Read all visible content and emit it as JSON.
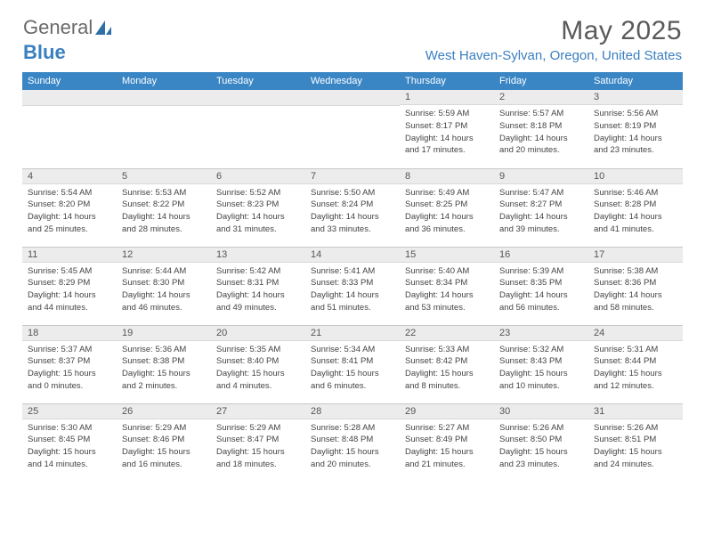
{
  "brand": {
    "part1": "General",
    "part2": "Blue"
  },
  "title": "May 2025",
  "location": "West Haven-Sylvan, Oregon, United States",
  "weekdays": [
    "Sunday",
    "Monday",
    "Tuesday",
    "Wednesday",
    "Thursday",
    "Friday",
    "Saturday"
  ],
  "colors": {
    "header_bg": "#3a86c5",
    "accent": "#3a7fbf",
    "daynum_bg": "#ececec",
    "text": "#444444"
  },
  "weeks": [
    [
      {
        "empty": true
      },
      {
        "empty": true
      },
      {
        "empty": true
      },
      {
        "empty": true
      },
      {
        "n": "1",
        "sr": "5:59 AM",
        "ss": "8:17 PM",
        "dh": "14",
        "dm": "17"
      },
      {
        "n": "2",
        "sr": "5:57 AM",
        "ss": "8:18 PM",
        "dh": "14",
        "dm": "20"
      },
      {
        "n": "3",
        "sr": "5:56 AM",
        "ss": "8:19 PM",
        "dh": "14",
        "dm": "23"
      }
    ],
    [
      {
        "n": "4",
        "sr": "5:54 AM",
        "ss": "8:20 PM",
        "dh": "14",
        "dm": "25"
      },
      {
        "n": "5",
        "sr": "5:53 AM",
        "ss": "8:22 PM",
        "dh": "14",
        "dm": "28"
      },
      {
        "n": "6",
        "sr": "5:52 AM",
        "ss": "8:23 PM",
        "dh": "14",
        "dm": "31"
      },
      {
        "n": "7",
        "sr": "5:50 AM",
        "ss": "8:24 PM",
        "dh": "14",
        "dm": "33"
      },
      {
        "n": "8",
        "sr": "5:49 AM",
        "ss": "8:25 PM",
        "dh": "14",
        "dm": "36"
      },
      {
        "n": "9",
        "sr": "5:47 AM",
        "ss": "8:27 PM",
        "dh": "14",
        "dm": "39"
      },
      {
        "n": "10",
        "sr": "5:46 AM",
        "ss": "8:28 PM",
        "dh": "14",
        "dm": "41"
      }
    ],
    [
      {
        "n": "11",
        "sr": "5:45 AM",
        "ss": "8:29 PM",
        "dh": "14",
        "dm": "44"
      },
      {
        "n": "12",
        "sr": "5:44 AM",
        "ss": "8:30 PM",
        "dh": "14",
        "dm": "46"
      },
      {
        "n": "13",
        "sr": "5:42 AM",
        "ss": "8:31 PM",
        "dh": "14",
        "dm": "49"
      },
      {
        "n": "14",
        "sr": "5:41 AM",
        "ss": "8:33 PM",
        "dh": "14",
        "dm": "51"
      },
      {
        "n": "15",
        "sr": "5:40 AM",
        "ss": "8:34 PM",
        "dh": "14",
        "dm": "53"
      },
      {
        "n": "16",
        "sr": "5:39 AM",
        "ss": "8:35 PM",
        "dh": "14",
        "dm": "56"
      },
      {
        "n": "17",
        "sr": "5:38 AM",
        "ss": "8:36 PM",
        "dh": "14",
        "dm": "58"
      }
    ],
    [
      {
        "n": "18",
        "sr": "5:37 AM",
        "ss": "8:37 PM",
        "dh": "15",
        "dm": "0"
      },
      {
        "n": "19",
        "sr": "5:36 AM",
        "ss": "8:38 PM",
        "dh": "15",
        "dm": "2"
      },
      {
        "n": "20",
        "sr": "5:35 AM",
        "ss": "8:40 PM",
        "dh": "15",
        "dm": "4"
      },
      {
        "n": "21",
        "sr": "5:34 AM",
        "ss": "8:41 PM",
        "dh": "15",
        "dm": "6"
      },
      {
        "n": "22",
        "sr": "5:33 AM",
        "ss": "8:42 PM",
        "dh": "15",
        "dm": "8"
      },
      {
        "n": "23",
        "sr": "5:32 AM",
        "ss": "8:43 PM",
        "dh": "15",
        "dm": "10"
      },
      {
        "n": "24",
        "sr": "5:31 AM",
        "ss": "8:44 PM",
        "dh": "15",
        "dm": "12"
      }
    ],
    [
      {
        "n": "25",
        "sr": "5:30 AM",
        "ss": "8:45 PM",
        "dh": "15",
        "dm": "14"
      },
      {
        "n": "26",
        "sr": "5:29 AM",
        "ss": "8:46 PM",
        "dh": "15",
        "dm": "16"
      },
      {
        "n": "27",
        "sr": "5:29 AM",
        "ss": "8:47 PM",
        "dh": "15",
        "dm": "18"
      },
      {
        "n": "28",
        "sr": "5:28 AM",
        "ss": "8:48 PM",
        "dh": "15",
        "dm": "20"
      },
      {
        "n": "29",
        "sr": "5:27 AM",
        "ss": "8:49 PM",
        "dh": "15",
        "dm": "21"
      },
      {
        "n": "30",
        "sr": "5:26 AM",
        "ss": "8:50 PM",
        "dh": "15",
        "dm": "23"
      },
      {
        "n": "31",
        "sr": "5:26 AM",
        "ss": "8:51 PM",
        "dh": "15",
        "dm": "24"
      }
    ]
  ]
}
